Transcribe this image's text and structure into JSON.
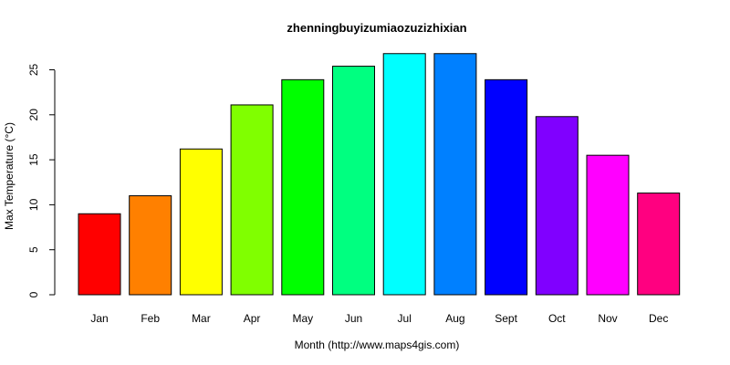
{
  "chart_data": {
    "type": "bar",
    "title": "zhenningbuyizumiaozuzizhixian",
    "xlabel": "Month (http://www.maps4gis.com)",
    "ylabel": "Max Temperature (°C)",
    "categories": [
      "Jan",
      "Feb",
      "Mar",
      "Apr",
      "May",
      "Jun",
      "Jul",
      "Aug",
      "Sept",
      "Oct",
      "Nov",
      "Dec"
    ],
    "values": [
      9.0,
      11.0,
      16.2,
      21.1,
      23.9,
      25.4,
      26.8,
      26.8,
      23.9,
      19.8,
      15.5,
      11.3
    ],
    "colors": [
      "#FF0000",
      "#FF8000",
      "#FFFF00",
      "#80FF00",
      "#00FF00",
      "#00FF80",
      "#00FFFF",
      "#0080FF",
      "#0000FF",
      "#8000FF",
      "#FF00FF",
      "#FF0080"
    ],
    "yticks": [
      "0",
      "5",
      "10",
      "15",
      "20",
      "25"
    ],
    "ylim": [
      0,
      27
    ],
    "grid": false,
    "legend": "none"
  }
}
